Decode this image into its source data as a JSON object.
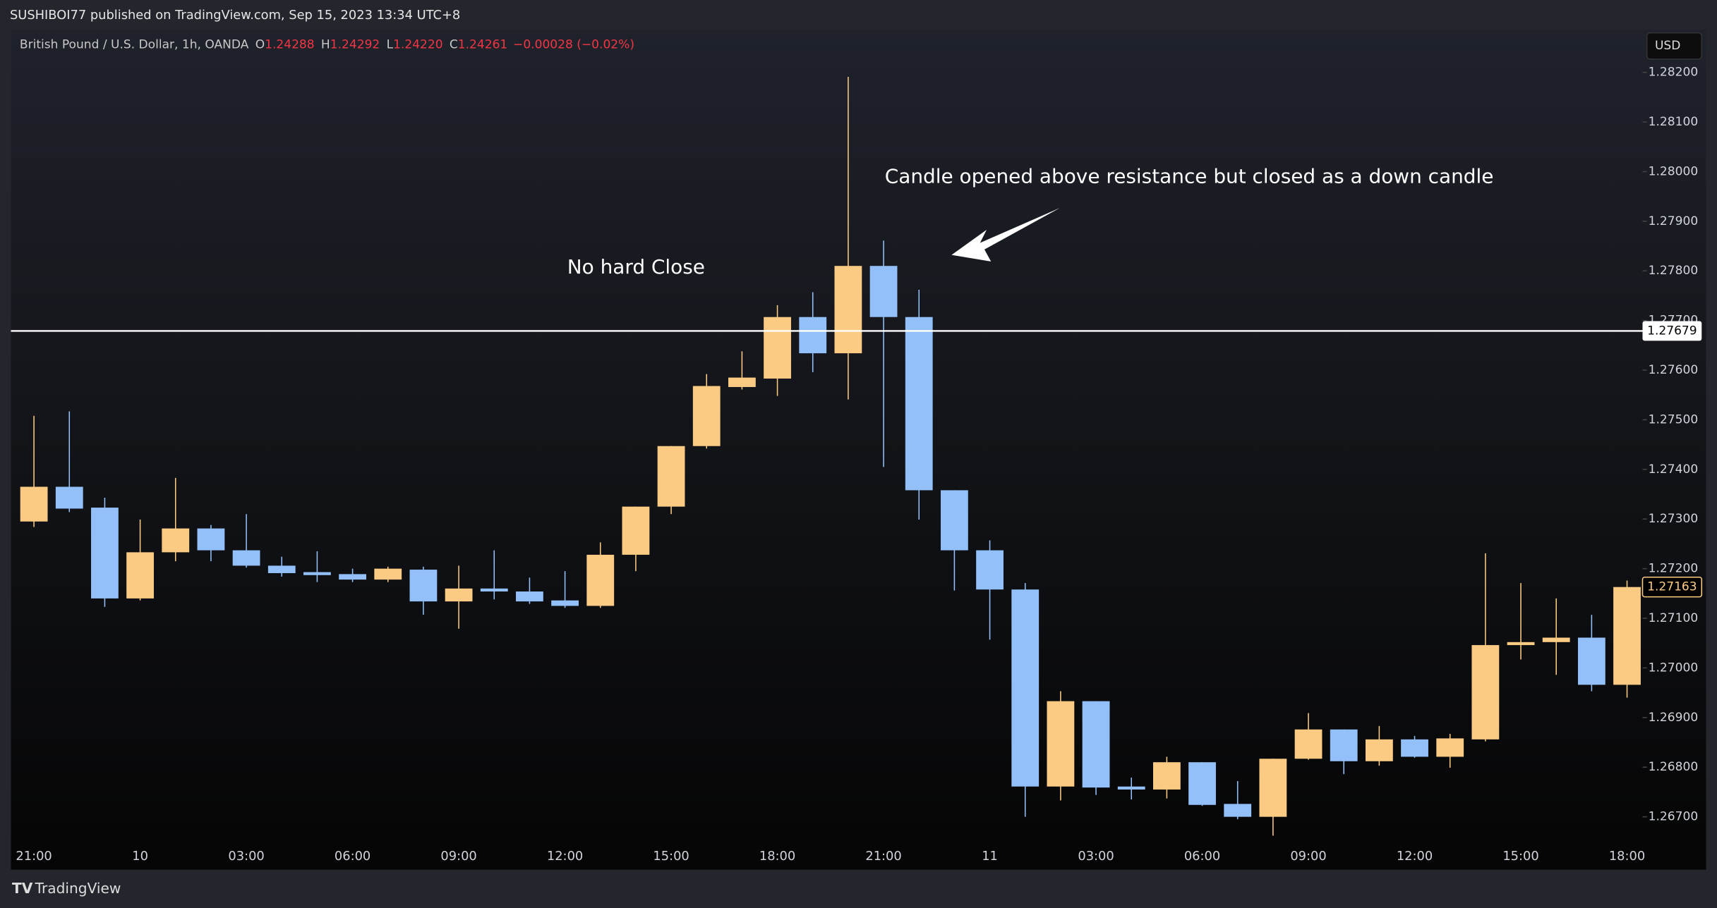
{
  "header": "SUSHIBOI77 published on TradingView.com, Sep 15, 2023 13:34 UTC+8",
  "footer": "TradingView",
  "chart_data": {
    "type": "candlestick",
    "symbol": "British Pound / U.S. Dollar, 1h, OANDA",
    "ohlc_legend": [
      {
        "key": "O",
        "value": "1.24288"
      },
      {
        "key": "H",
        "value": "1.24292"
      },
      {
        "key": "L",
        "value": "1.24220"
      },
      {
        "key": "C",
        "value": "1.24261"
      }
    ],
    "change": "−0.00028 (−0.02%)",
    "currency": "USD",
    "categories": [
      "21:00",
      null,
      null,
      "10",
      null,
      null,
      "03:00",
      null,
      null,
      "06:00",
      null,
      null,
      "09:00",
      null,
      null,
      "12:00",
      null,
      null,
      "15:00",
      null,
      null,
      "18:00",
      null,
      null,
      "21:00",
      null,
      null,
      "11",
      null,
      null,
      "03:00",
      null,
      null,
      "06:00",
      null,
      null,
      "09:00",
      null,
      null,
      "12:00",
      null,
      null,
      "15:00",
      null,
      null,
      "18:00"
    ],
    "open": [
      1.27295,
      1.27365,
      1.27323,
      1.2714,
      1.27233,
      1.27281,
      1.27237,
      1.27206,
      1.27193,
      1.27189,
      1.27178,
      1.27198,
      1.27134,
      1.2716,
      1.27154,
      1.27136,
      1.27125,
      1.27228,
      1.27325,
      1.27447,
      1.27566,
      1.27583,
      1.27707,
      1.27634,
      1.2781,
      1.27707,
      1.27358,
      1.27237,
      1.27158,
      1.26761,
      1.26933,
      1.26761,
      1.26755,
      1.2681,
      1.26726,
      1.267,
      1.26817,
      1.26876,
      1.26812,
      1.26856,
      1.26821,
      1.26856,
      1.27046,
      1.27052,
      1.27061,
      1.26966
    ],
    "high": [
      1.27508,
      1.27517,
      1.27343,
      1.27299,
      1.27383,
      1.27288,
      1.2731,
      1.27224,
      1.27235,
      1.272,
      1.27204,
      1.27204,
      1.27206,
      1.27237,
      1.27182,
      1.27195,
      1.27253,
      1.27325,
      1.27447,
      1.27592,
      1.27638,
      1.27731,
      1.27757,
      1.28191,
      1.27861,
      1.27762,
      1.27358,
      1.27257,
      1.27171,
      1.26953,
      1.26933,
      1.26779,
      1.26821,
      1.2681,
      1.26772,
      1.26817,
      1.26909,
      1.26876,
      1.26883,
      1.26863,
      1.26867,
      1.27231,
      1.27171,
      1.2714,
      1.27107,
      1.27176
    ],
    "low": [
      1.27284,
      1.27314,
      1.27123,
      1.27136,
      1.27215,
      1.27215,
      1.27202,
      1.27184,
      1.27173,
      1.27173,
      1.27173,
      1.27107,
      1.27079,
      1.27138,
      1.27129,
      1.27121,
      1.27121,
      1.27195,
      1.2731,
      1.27442,
      1.27561,
      1.27548,
      1.27596,
      1.27541,
      1.27405,
      1.27299,
      1.27156,
      1.27057,
      1.267,
      1.26733,
      1.26744,
      1.26735,
      1.26737,
      1.26722,
      1.26695,
      1.26662,
      1.26815,
      1.26786,
      1.26803,
      1.26819,
      1.26799,
      1.26852,
      1.27017,
      1.26986,
      1.26953,
      1.2694
    ],
    "close": [
      1.27365,
      1.27321,
      1.2714,
      1.27233,
      1.27281,
      1.27237,
      1.27206,
      1.27191,
      1.27187,
      1.27178,
      1.272,
      1.27134,
      1.2716,
      1.27154,
      1.27134,
      1.27125,
      1.27228,
      1.27325,
      1.27447,
      1.27568,
      1.27585,
      1.27707,
      1.27634,
      1.2781,
      1.27707,
      1.27358,
      1.27237,
      1.27158,
      1.26761,
      1.26933,
      1.26759,
      1.26755,
      1.2681,
      1.26724,
      1.267,
      1.26817,
      1.26876,
      1.26812,
      1.26856,
      1.26821,
      1.26858,
      1.27046,
      1.27052,
      1.27061,
      1.26966,
      1.27163
    ],
    "up_color": "#fccb83",
    "down_color": "#93c0f8",
    "ylim": [
      1.26653,
      1.28284
    ],
    "yticks": [
      {
        "value": 1.267,
        "label": "1.26700"
      },
      {
        "value": 1.268,
        "label": "1.26800"
      },
      {
        "value": 1.269,
        "label": "1.26900"
      },
      {
        "value": 1.27,
        "label": "1.27000"
      },
      {
        "value": 1.271,
        "label": "1.27100"
      },
      {
        "value": 1.272,
        "label": "1.27200"
      },
      {
        "value": 1.273,
        "label": "1.27300"
      },
      {
        "value": 1.274,
        "label": "1.27400"
      },
      {
        "value": 1.275,
        "label": "1.27500"
      },
      {
        "value": 1.276,
        "label": "1.27600"
      },
      {
        "value": 1.277,
        "label": "1.27700"
      },
      {
        "value": 1.278,
        "label": "1.27800"
      },
      {
        "value": 1.279,
        "label": "1.27900"
      },
      {
        "value": 1.28,
        "label": "1.28000"
      },
      {
        "value": 1.281,
        "label": "1.28100"
      },
      {
        "value": 1.282,
        "label": "1.28200"
      }
    ],
    "resistance": {
      "value": 1.27679,
      "label": "1.27679"
    },
    "last_price": {
      "value": 1.27163,
      "label": "1.27163"
    },
    "annotations": [
      "No hard Close",
      "Candle opened above resistance but closed as a down candle"
    ]
  }
}
